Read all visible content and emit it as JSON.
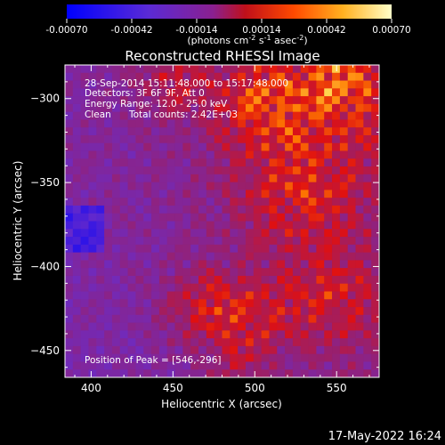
{
  "colorbar": {
    "ticks": [
      "-0.00070",
      "-0.00042",
      "-0.00014",
      "0.00014",
      "0.00042",
      "0.00070"
    ],
    "units_main": "(photons cm",
    "units_sup1": "-2",
    "units_s": " s",
    "units_sup2": "-1",
    "units_asec": " asec",
    "units_sup3": "-2",
    "units_close": ")"
  },
  "chart_data": {
    "type": "heatmap",
    "title": "Reconstructed RHESSI Image",
    "xlabel": "Heliocentric X (arcsec)",
    "ylabel": "Heliocentric Y (arcsec)",
    "xlim": [
      384,
      576
    ],
    "ylim": [
      -466,
      -280
    ],
    "x_ticks": [
      400,
      450,
      500,
      550
    ],
    "y_ticks": [
      -300,
      -350,
      -400,
      -450
    ],
    "value_range": [
      -0.0007,
      0.0007
    ],
    "colormap": [
      "#0000ff",
      "#6a2cc8",
      "#9a1f6a",
      "#e01010",
      "#ff7a00",
      "#ffe25a",
      "#ffffff"
    ],
    "annotations": [
      "28-Sep-2014 15:11:48.000 to 15:17:48.000",
      "Detectors: 3F 6F 9F, Att 0",
      "Energy Range: 12.0 - 25.0 keV",
      "Clean",
      "Total counts: 2.42E+03",
      "Position of Peak = [546,-296]"
    ],
    "peak": [
      546,
      -296
    ]
  },
  "footer_date": "17-May-2022 16:24"
}
